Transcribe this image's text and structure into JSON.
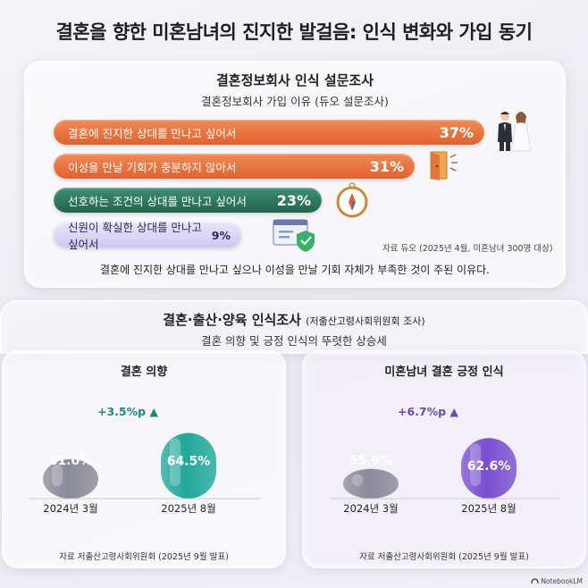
{
  "title": "결혼을 향한 미혼남녀의 진지한 발걸음: 인식 변화와 가입 동기",
  "survey": {
    "title": "결혼정보회사 인식 설문조사",
    "subtitle": "결혼정보회사 가입 이유 (듀오 설문조사)",
    "source": "자료 듀오 (2025년 4월, 미혼남녀 300명 대상)",
    "summary": "결혼에 진지한 상대를 만나고 싶으나 이성을 만날 기회 자체가 부족한 것이 주된 이유다.",
    "icons": [
      "wedding-couple-icon",
      "open-door-icon",
      "compass-icon",
      "verified-profile-icon"
    ],
    "colors": {
      "orange": "#e8733f",
      "green": "#2f7a60",
      "lavender": "#d9d3f6"
    }
  },
  "gov": {
    "title": "결혼·출산·양육 인식조사",
    "title_note": "(저출산고령사회위원회 조사)",
    "subtitle": "결혼 의향 및 긍정 인식의 뚜렷한 상승세"
  },
  "chart_data": [
    {
      "type": "bar",
      "orientation": "horizontal",
      "categories": [
        "결혼에 진지한 상대를 만나고 싶어서",
        "이성을 만날 기회가 충분하지 않아서",
        "선호하는 조건의 상대를 만나고 싶어서",
        "신원이 확실한 상대를 만나고 싶어서"
      ],
      "values": [
        37,
        31,
        23,
        9
      ],
      "value_labels": [
        "37%",
        "31%",
        "23%",
        "9%"
      ]
    },
    {
      "type": "bar",
      "title": "결혼 의향",
      "categories": [
        "2024년 3월",
        "2025년 8월"
      ],
      "values": [
        61.0,
        64.5
      ],
      "value_labels": [
        "61.0%",
        "64.5%"
      ],
      "change_label": "+3.5%p ▲",
      "colors": [
        "#8a8a98",
        "#1fa89a"
      ],
      "source": "자료 저출산고령사회위원회 (2025년 9월 발표)"
    },
    {
      "type": "bar",
      "title": "미혼남녀 결혼 긍정 인식",
      "categories": [
        "2024년 3월",
        "2025년 8월"
      ],
      "values": [
        55.9,
        62.6
      ],
      "value_labels": [
        "55.9%",
        "62.6%"
      ],
      "change_label": "+6.7%p ▲",
      "colors": [
        "#8a8a98",
        "#7a4fd0"
      ],
      "source": "자료 저출산고령사회위원회 (2025년 9월 발표)"
    }
  ],
  "watermark": "NotebookLM"
}
